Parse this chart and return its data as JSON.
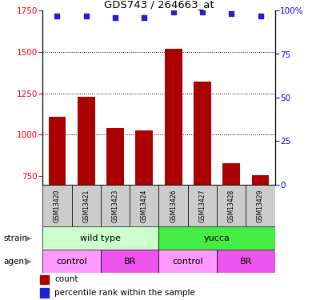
{
  "title": "GDS743 / 264663_at",
  "categories": [
    "GSM13420",
    "GSM13421",
    "GSM13423",
    "GSM13424",
    "GSM13426",
    "GSM13427",
    "GSM13428",
    "GSM13429"
  ],
  "bar_values": [
    1110,
    1230,
    1040,
    1025,
    1520,
    1320,
    830,
    755
  ],
  "percentile_values": [
    97,
    97,
    96,
    96,
    99,
    99,
    98,
    97
  ],
  "bar_color": "#AA0000",
  "dot_color": "#2222CC",
  "ylim_left": [
    700,
    1750
  ],
  "ylim_right": [
    0,
    100
  ],
  "yticks_left": [
    750,
    1000,
    1250,
    1500,
    1750
  ],
  "yticks_right": [
    0,
    25,
    50,
    75,
    100
  ],
  "grid_values": [
    1000,
    1250,
    1500
  ],
  "strain_labels": [
    {
      "text": "wild type",
      "start": 0,
      "end": 4,
      "color": "#CCFFCC"
    },
    {
      "text": "yucca",
      "start": 4,
      "end": 8,
      "color": "#44EE44"
    }
  ],
  "agent_labels": [
    {
      "text": "control",
      "start": 0,
      "end": 2,
      "color": "#FF99FF"
    },
    {
      "text": "BR",
      "start": 2,
      "end": 4,
      "color": "#EE55EE"
    },
    {
      "text": "control",
      "start": 4,
      "end": 6,
      "color": "#FF99FF"
    },
    {
      "text": "BR",
      "start": 6,
      "end": 8,
      "color": "#EE55EE"
    }
  ],
  "legend_count_color": "#AA0000",
  "legend_percentile_color": "#2222CC",
  "sample_bg_color": "#CCCCCC",
  "label_strain": "strain",
  "label_agent": "agent"
}
